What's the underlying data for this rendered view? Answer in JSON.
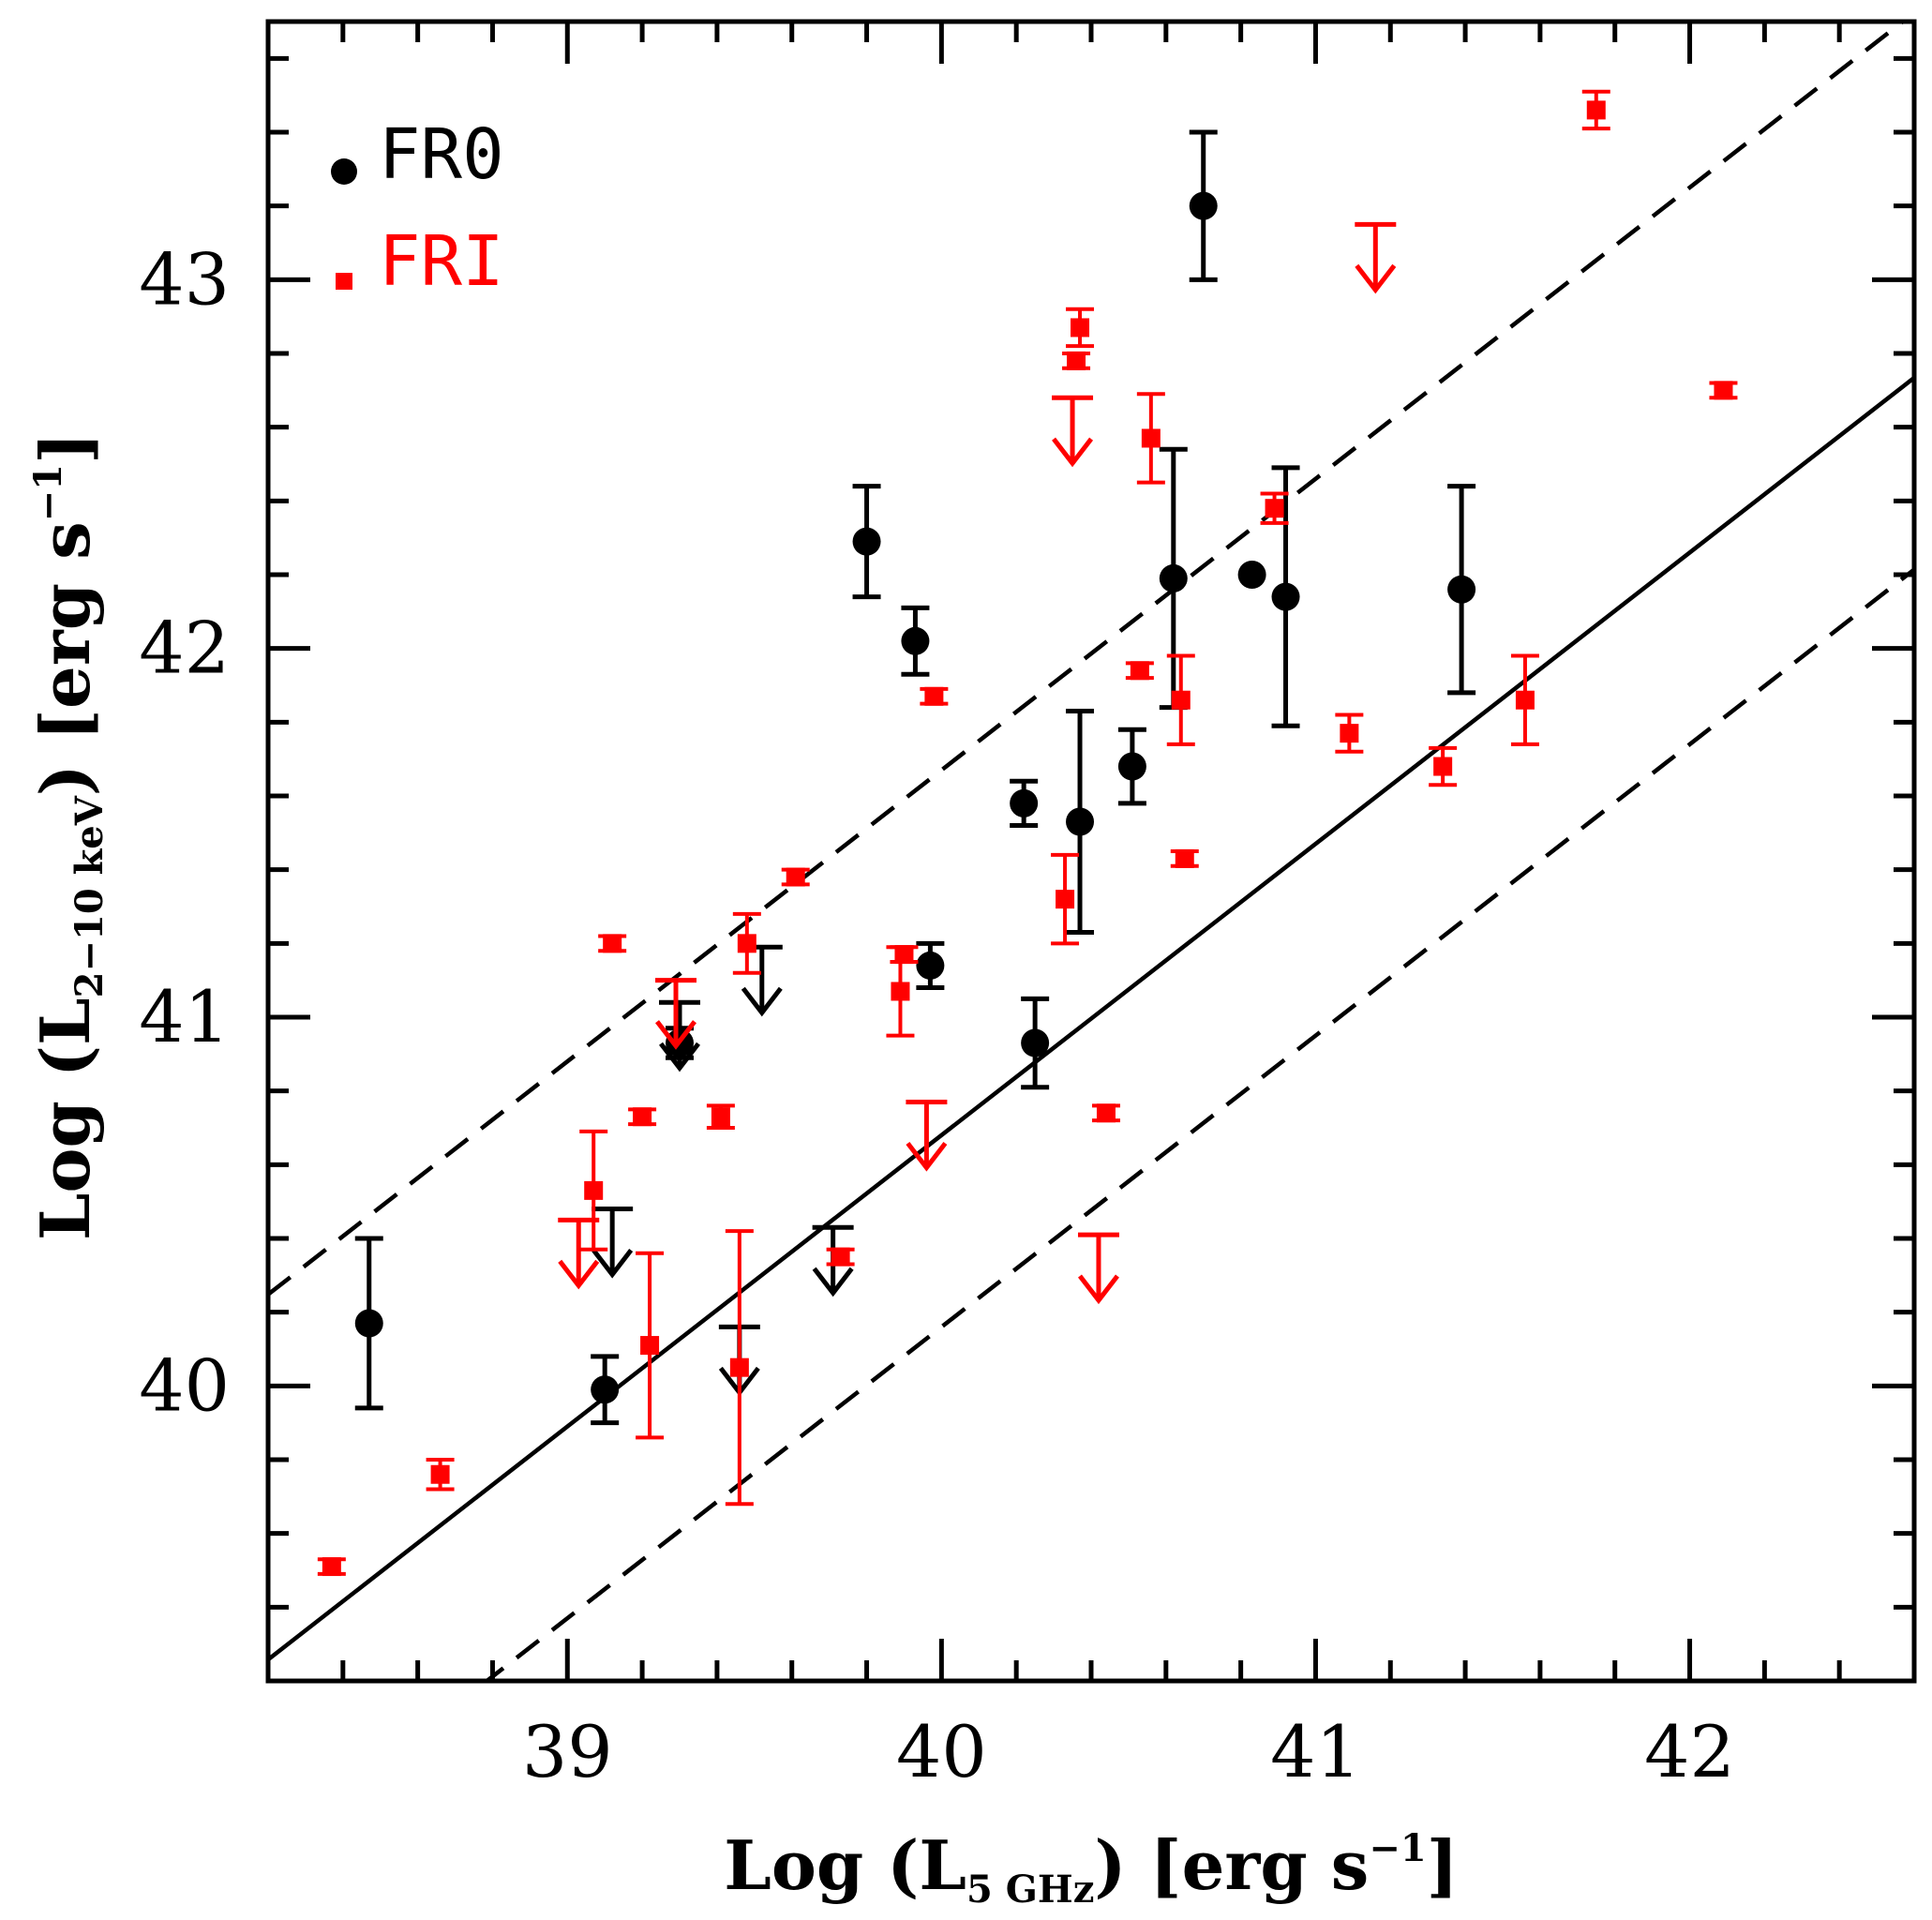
{
  "chart_data": {
    "type": "scatter",
    "title": "",
    "xlabel": {
      "prefix": "Log (L",
      "sub": "5 GHz",
      "suffix": ") [erg s",
      "sup": "−1",
      "end": "]"
    },
    "ylabel": {
      "prefix": "Log (L",
      "sub": "2−10 keV",
      "suffix": ") [erg s",
      "sup": "−1",
      "end": "]"
    },
    "xlim": [
      38.2,
      42.6
    ],
    "ylim": [
      39.2,
      43.7
    ],
    "xticks": [
      "39",
      "40",
      "41",
      "42"
    ],
    "yticks": [
      "40",
      "41",
      "42",
      "43"
    ],
    "legend": {
      "placement": "top-left"
    },
    "colors": {
      "FR0": "#000000",
      "FRI": "#ff0000"
    },
    "lines": [
      {
        "style": "solid",
        "slope": 0.79,
        "intercept": 9.08
      },
      {
        "style": "dashed",
        "slope": 0.79,
        "intercept": 10.07
      },
      {
        "style": "dashed",
        "slope": 0.79,
        "intercept": 8.56
      }
    ],
    "series": [
      {
        "name": "FR0",
        "marker": "circle",
        "points": [
          {
            "x": 38.47,
            "y": 40.17,
            "yerr_lo": 0.23,
            "yerr_hi": 0.23
          },
          {
            "x": 39.1,
            "y": 39.99,
            "yerr_lo": 0.09,
            "yerr_hi": 0.09
          },
          {
            "x": 39.3,
            "y": 40.93,
            "yerr_lo": 0.04,
            "yerr_hi": 0.04
          },
          {
            "x": 39.8,
            "y": 42.29,
            "yerr_lo": 0.15,
            "yerr_hi": 0.15
          },
          {
            "x": 39.93,
            "y": 42.02,
            "yerr_lo": 0.09,
            "yerr_hi": 0.09
          },
          {
            "x": 39.97,
            "y": 41.14,
            "yerr_lo": 0.06,
            "yerr_hi": 0.06
          },
          {
            "x": 40.22,
            "y": 41.58,
            "yerr_lo": 0.06,
            "yerr_hi": 0.06
          },
          {
            "x": 40.25,
            "y": 40.93,
            "yerr_lo": 0.12,
            "yerr_hi": 0.12
          },
          {
            "x": 40.37,
            "y": 41.53,
            "yerr_lo": 0.3,
            "yerr_hi": 0.3
          },
          {
            "x": 40.51,
            "y": 41.68,
            "yerr_lo": 0.1,
            "yerr_hi": 0.1
          },
          {
            "x": 40.62,
            "y": 42.19,
            "yerr_lo": 0.35,
            "yerr_hi": 0.35
          },
          {
            "x": 40.7,
            "y": 43.2,
            "yerr_lo": 0.2,
            "yerr_hi": 0.2
          },
          {
            "x": 40.83,
            "y": 42.2,
            "yerr_lo": 0,
            "yerr_hi": 0
          },
          {
            "x": 40.92,
            "y": 42.14,
            "yerr_lo": 0.35,
            "yerr_hi": 0.35
          },
          {
            "x": 41.39,
            "y": 42.16,
            "yerr_lo": 0.28,
            "yerr_hi": 0.28
          }
        ],
        "upper_limits": [
          {
            "x": 39.12,
            "y": 40.48
          },
          {
            "x": 39.3,
            "y": 41.04
          },
          {
            "x": 39.46,
            "y": 40.16
          },
          {
            "x": 39.52,
            "y": 41.19
          },
          {
            "x": 39.71,
            "y": 40.43
          }
        ]
      },
      {
        "name": "FRI",
        "marker": "square",
        "points": [
          {
            "x": 38.37,
            "y": 39.51,
            "yerr_lo": 0.02,
            "yerr_hi": 0.02
          },
          {
            "x": 38.66,
            "y": 39.76,
            "yerr_lo": 0.04,
            "yerr_hi": 0.04
          },
          {
            "x": 39.07,
            "y": 40.53,
            "yerr_lo": 0.16,
            "yerr_hi": 0.16
          },
          {
            "x": 39.12,
            "y": 41.2,
            "yerr_lo": 0.02,
            "yerr_hi": 0.02
          },
          {
            "x": 39.2,
            "y": 40.73,
            "yerr_lo": 0.02,
            "yerr_hi": 0.02
          },
          {
            "x": 39.22,
            "y": 40.11,
            "yerr_lo": 0.25,
            "yerr_hi": 0.25
          },
          {
            "x": 39.41,
            "y": 40.73,
            "yerr_lo": 0.03,
            "yerr_hi": 0.03
          },
          {
            "x": 39.46,
            "y": 40.05,
            "yerr_lo": 0.37,
            "yerr_hi": 0.37
          },
          {
            "x": 39.48,
            "y": 41.2,
            "yerr_lo": 0.08,
            "yerr_hi": 0.08
          },
          {
            "x": 39.61,
            "y": 41.38,
            "yerr_lo": 0.02,
            "yerr_hi": 0.02
          },
          {
            "x": 39.73,
            "y": 40.35,
            "yerr_lo": 0.02,
            "yerr_hi": 0.02
          },
          {
            "x": 39.89,
            "y": 41.07,
            "yerr_lo": 0.12,
            "yerr_hi": 0.12
          },
          {
            "x": 39.9,
            "y": 41.17,
            "yerr_lo": 0.02,
            "yerr_hi": 0.02
          },
          {
            "x": 39.98,
            "y": 41.87,
            "yerr_lo": 0.02,
            "yerr_hi": 0.02
          },
          {
            "x": 40.33,
            "y": 41.32,
            "yerr_lo": 0.12,
            "yerr_hi": 0.12
          },
          {
            "x": 40.36,
            "y": 42.78,
            "yerr_lo": 0.02,
            "yerr_hi": 0.02
          },
          {
            "x": 40.37,
            "y": 42.87,
            "yerr_lo": 0.05,
            "yerr_hi": 0.05
          },
          {
            "x": 40.44,
            "y": 40.74,
            "yerr_lo": 0.02,
            "yerr_hi": 0.02
          },
          {
            "x": 40.53,
            "y": 41.94,
            "yerr_lo": 0.02,
            "yerr_hi": 0.02
          },
          {
            "x": 40.56,
            "y": 42.57,
            "yerr_lo": 0.12,
            "yerr_hi": 0.12
          },
          {
            "x": 40.64,
            "y": 41.86,
            "yerr_lo": 0.12,
            "yerr_hi": 0.12
          },
          {
            "x": 40.65,
            "y": 41.43,
            "yerr_lo": 0.02,
            "yerr_hi": 0.02
          },
          {
            "x": 40.89,
            "y": 42.38,
            "yerr_lo": 0.04,
            "yerr_hi": 0.04
          },
          {
            "x": 41.09,
            "y": 41.77,
            "yerr_lo": 0.05,
            "yerr_hi": 0.05
          },
          {
            "x": 41.34,
            "y": 41.68,
            "yerr_lo": 0.05,
            "yerr_hi": 0.05
          },
          {
            "x": 41.56,
            "y": 41.86,
            "yerr_lo": 0.12,
            "yerr_hi": 0.12
          },
          {
            "x": 41.75,
            "y": 43.46,
            "yerr_lo": 0.05,
            "yerr_hi": 0.05
          },
          {
            "x": 42.09,
            "y": 42.7,
            "yerr_lo": 0.02,
            "yerr_hi": 0.02
          }
        ],
        "upper_limits": [
          {
            "x": 39.03,
            "y": 40.45
          },
          {
            "x": 39.29,
            "y": 41.1
          },
          {
            "x": 39.96,
            "y": 40.77
          },
          {
            "x": 40.35,
            "y": 42.68
          },
          {
            "x": 40.42,
            "y": 40.41
          },
          {
            "x": 41.16,
            "y": 43.15
          }
        ]
      }
    ]
  }
}
